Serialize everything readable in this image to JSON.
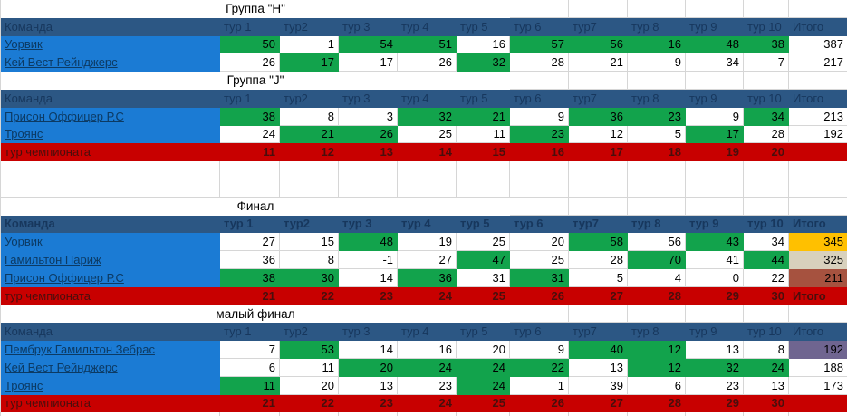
{
  "colors": {
    "header-bg": "#2C5784",
    "header-text": "#17375D",
    "team-bg": "#1B7BD4",
    "team-text": "#0C3A63",
    "green": "#12A34C",
    "red": "#C80000",
    "red-text": "#4A0E0C",
    "gold": "#FFC000",
    "silver": "#D8D1BD",
    "bronze": "#A6523F",
    "purple": "#6F6590",
    "grid": "#D6D6D6"
  },
  "sections": [
    {
      "title": "Группа \"H\"",
      "header": [
        "Команда",
        "тур 1",
        "тур2",
        "тур 3",
        "тур 4",
        "тур 5",
        "тур 6",
        "тур7",
        "тур 8",
        "тур 9",
        "тур 10",
        "Итого"
      ],
      "header_bold": false,
      "teams": [
        {
          "name": "Уорвик",
          "cells": [
            [
              50,
              "g"
            ],
            [
              1,
              "w"
            ],
            [
              54,
              "g"
            ],
            [
              51,
              "g"
            ],
            [
              16,
              "w"
            ],
            [
              57,
              "g"
            ],
            [
              56,
              "g"
            ],
            [
              16,
              "g"
            ],
            [
              48,
              "g"
            ],
            [
              38,
              "g"
            ]
          ],
          "total": [
            387,
            "w"
          ]
        },
        {
          "name": "Кей Вест Рейнджерс",
          "cells": [
            [
              26,
              "w"
            ],
            [
              17,
              "g"
            ],
            [
              17,
              "w"
            ],
            [
              26,
              "w"
            ],
            [
              32,
              "g"
            ],
            [
              28,
              "w"
            ],
            [
              21,
              "w"
            ],
            [
              9,
              "w"
            ],
            [
              34,
              "w"
            ],
            [
              7,
              "w"
            ]
          ],
          "total": [
            217,
            "w"
          ]
        }
      ],
      "footer": null,
      "spacer_after": 0
    },
    {
      "title": "Группа \"J\"",
      "header": [
        "Команда",
        "тур 1",
        "тур2",
        "тур 3",
        "тур 4",
        "тур 5",
        "тур 6",
        "тур7",
        "тур 8",
        "тур 9",
        "тур 10",
        "Итого"
      ],
      "header_bold": false,
      "teams": [
        {
          "name": "Присон Оффицер Р.С",
          "cells": [
            [
              38,
              "g"
            ],
            [
              8,
              "w"
            ],
            [
              3,
              "w"
            ],
            [
              32,
              "g"
            ],
            [
              21,
              "g"
            ],
            [
              9,
              "w"
            ],
            [
              36,
              "g"
            ],
            [
              23,
              "g"
            ],
            [
              9,
              "w"
            ],
            [
              34,
              "g"
            ]
          ],
          "total": [
            213,
            "w"
          ]
        },
        {
          "name": "Троянс",
          "cells": [
            [
              24,
              "w"
            ],
            [
              21,
              "g"
            ],
            [
              26,
              "g"
            ],
            [
              25,
              "w"
            ],
            [
              11,
              "w"
            ],
            [
              23,
              "g"
            ],
            [
              12,
              "w"
            ],
            [
              5,
              "w"
            ],
            [
              17,
              "g"
            ],
            [
              28,
              "w"
            ]
          ],
          "total": [
            192,
            "w"
          ]
        }
      ],
      "footer": {
        "label": "тур чемпионата",
        "values": [
          11,
          12,
          13,
          14,
          15,
          16,
          17,
          18,
          19,
          20
        ],
        "total": ""
      },
      "spacer_after": 2
    },
    {
      "title": "Финал",
      "header": [
        "Команда",
        "тур 1",
        "тур2",
        "тур 3",
        "тур 4",
        "тур 5",
        "тур 6",
        "тур7",
        "тур 8",
        "тур 9",
        "тур 10",
        "Итого"
      ],
      "header_bold": true,
      "teams": [
        {
          "name": "Уорвик",
          "cells": [
            [
              27,
              "w"
            ],
            [
              15,
              "w"
            ],
            [
              48,
              "g"
            ],
            [
              19,
              "w"
            ],
            [
              25,
              "w"
            ],
            [
              20,
              "w"
            ],
            [
              58,
              "g"
            ],
            [
              56,
              "w"
            ],
            [
              43,
              "g"
            ],
            [
              34,
              "w"
            ]
          ],
          "total": [
            345,
            "gold"
          ]
        },
        {
          "name": "Гамильтон Париж",
          "cells": [
            [
              36,
              "w"
            ],
            [
              8,
              "w"
            ],
            [
              -1,
              "w"
            ],
            [
              27,
              "w"
            ],
            [
              47,
              "g"
            ],
            [
              25,
              "w"
            ],
            [
              28,
              "w"
            ],
            [
              70,
              "g"
            ],
            [
              41,
              "w"
            ],
            [
              44,
              "g"
            ]
          ],
          "total": [
            325,
            "silver"
          ]
        },
        {
          "name": "Присон Оффицер Р.С",
          "cells": [
            [
              38,
              "g"
            ],
            [
              30,
              "g"
            ],
            [
              14,
              "w"
            ],
            [
              36,
              "g"
            ],
            [
              31,
              "w"
            ],
            [
              31,
              "g"
            ],
            [
              5,
              "w"
            ],
            [
              4,
              "w"
            ],
            [
              0,
              "w"
            ],
            [
              22,
              "w"
            ]
          ],
          "total": [
            211,
            "bronze"
          ]
        }
      ],
      "footer": {
        "label": "тур чемпионата",
        "values": [
          21,
          22,
          23,
          24,
          25,
          26,
          27,
          28,
          29,
          30
        ],
        "total": "Итого"
      },
      "spacer_after": 0
    },
    {
      "title": "малый финал",
      "header": [
        "Команда",
        "тур 1",
        "тур2",
        "тур 3",
        "тур 4",
        "тур 5",
        "тур 6",
        "тур7",
        "тур 8",
        "тур 9",
        "тур 10",
        "Итого"
      ],
      "header_bold": false,
      "teams": [
        {
          "name": "Пембрук Гамильтон Зебрас",
          "cells": [
            [
              7,
              "w"
            ],
            [
              53,
              "g"
            ],
            [
              14,
              "w"
            ],
            [
              16,
              "w"
            ],
            [
              20,
              "w"
            ],
            [
              9,
              "w"
            ],
            [
              40,
              "g"
            ],
            [
              12,
              "g"
            ],
            [
              13,
              "w"
            ],
            [
              8,
              "w"
            ]
          ],
          "total": [
            192,
            "purple"
          ]
        },
        {
          "name": "Кей Вест Рейнджерс",
          "cells": [
            [
              6,
              "w"
            ],
            [
              11,
              "w"
            ],
            [
              20,
              "g"
            ],
            [
              24,
              "g"
            ],
            [
              24,
              "g"
            ],
            [
              22,
              "g"
            ],
            [
              13,
              "w"
            ],
            [
              12,
              "g"
            ],
            [
              32,
              "g"
            ],
            [
              24,
              "g"
            ]
          ],
          "total": [
            188,
            "w"
          ]
        },
        {
          "name": "Троянс",
          "cells": [
            [
              11,
              "g"
            ],
            [
              20,
              "w"
            ],
            [
              13,
              "w"
            ],
            [
              23,
              "w"
            ],
            [
              24,
              "g"
            ],
            [
              1,
              "w"
            ],
            [
              39,
              "w"
            ],
            [
              6,
              "w"
            ],
            [
              23,
              "w"
            ],
            [
              13,
              "w"
            ]
          ],
          "total": [
            173,
            "w"
          ]
        }
      ],
      "footer": {
        "label": "тур чемпионата",
        "values": [
          21,
          22,
          23,
          24,
          25,
          26,
          27,
          28,
          29,
          30
        ],
        "total": ""
      },
      "spacer_after": 0
    }
  ]
}
